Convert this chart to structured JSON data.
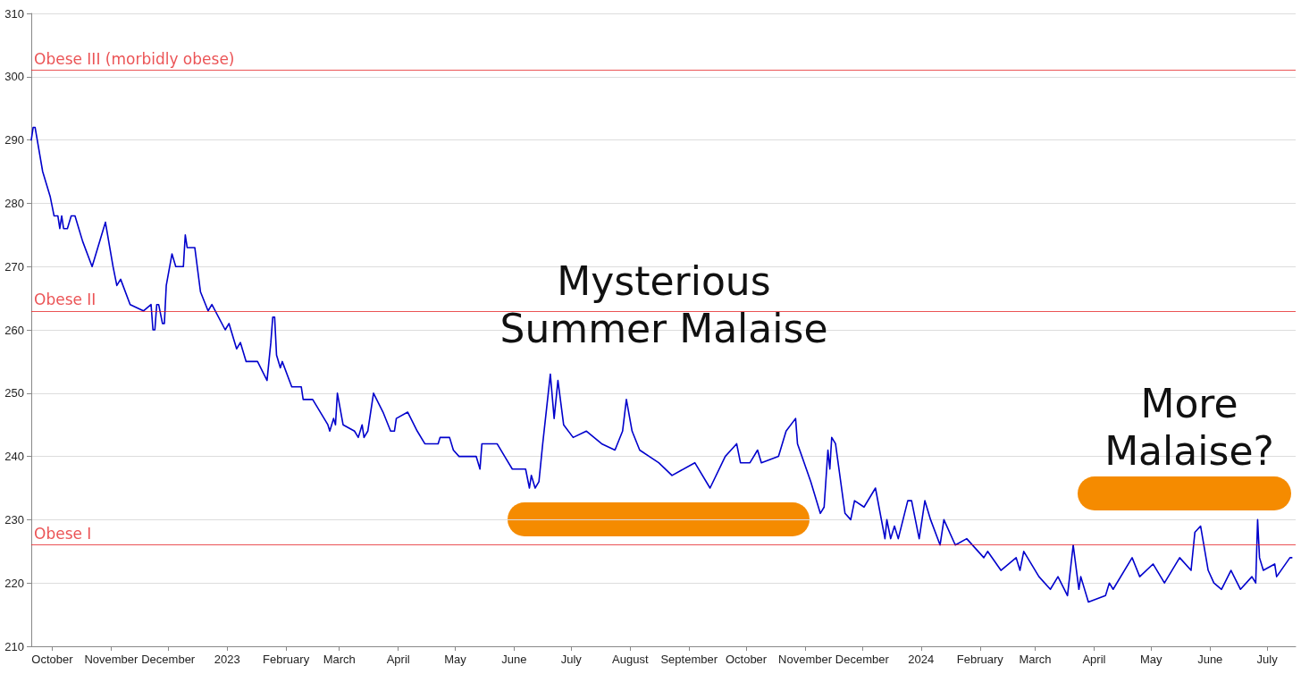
{
  "chart_data": {
    "type": "line",
    "x": [
      "2022-09-20",
      "2022-09-21",
      "2022-09-22",
      "2022-09-26",
      "2022-09-30",
      "2022-10-02",
      "2022-10-04",
      "2022-10-05",
      "2022-10-06",
      "2022-10-07",
      "2022-10-09",
      "2022-10-11",
      "2022-10-13",
      "2022-10-17",
      "2022-10-22",
      "2022-10-29",
      "2022-11-02",
      "2022-11-04",
      "2022-11-06",
      "2022-11-11",
      "2022-11-18",
      "2022-11-22",
      "2022-11-23",
      "2022-11-24",
      "2022-11-25",
      "2022-11-26",
      "2022-11-28",
      "2022-11-29",
      "2022-11-30",
      "2022-12-03",
      "2022-12-05",
      "2022-12-09",
      "2022-12-10",
      "2022-12-11",
      "2022-12-15",
      "2022-12-18",
      "2022-12-22",
      "2022-12-24",
      "2022-12-31",
      "2023-01-02",
      "2023-01-06",
      "2023-01-08",
      "2023-01-11",
      "2023-01-17",
      "2023-01-22",
      "2023-01-24",
      "2023-01-25",
      "2023-01-26",
      "2023-01-27",
      "2023-01-29",
      "2023-01-30",
      "2023-02-04",
      "2023-02-09",
      "2023-02-10",
      "2023-02-15",
      "2023-02-23",
      "2023-02-24",
      "2023-02-26",
      "2023-02-27",
      "2023-02-28",
      "2023-03-03",
      "2023-03-09",
      "2023-03-11",
      "2023-03-13",
      "2023-03-14",
      "2023-03-16",
      "2023-03-19",
      "2023-03-24",
      "2023-03-28",
      "2023-03-30",
      "2023-03-31",
      "2023-04-06",
      "2023-04-11",
      "2023-04-15",
      "2023-04-22",
      "2023-04-23",
      "2023-04-28",
      "2023-04-30",
      "2023-05-03",
      "2023-05-12",
      "2023-05-14",
      "2023-05-15",
      "2023-05-23",
      "2023-05-27",
      "2023-05-31",
      "2023-06-07",
      "2023-06-09",
      "2023-06-10",
      "2023-06-12",
      "2023-06-14",
      "2023-06-16",
      "2023-06-20",
      "2023-06-22",
      "2023-06-24",
      "2023-06-27",
      "2023-07-02",
      "2023-07-09",
      "2023-07-17",
      "2023-07-24",
      "2023-07-28",
      "2023-07-30",
      "2023-08-02",
      "2023-08-06",
      "2023-08-16",
      "2023-08-23",
      "2023-09-04",
      "2023-09-12",
      "2023-09-20",
      "2023-09-26",
      "2023-09-28",
      "2023-10-03",
      "2023-10-07",
      "2023-10-09",
      "2023-10-18",
      "2023-10-22",
      "2023-10-27",
      "2023-10-28",
      "2023-11-04",
      "2023-11-09",
      "2023-11-11",
      "2023-11-13",
      "2023-11-14",
      "2023-11-15",
      "2023-11-17",
      "2023-11-22",
      "2023-11-25",
      "2023-11-27",
      "2023-12-02",
      "2023-12-08",
      "2023-12-13",
      "2023-12-14",
      "2023-12-16",
      "2023-12-18",
      "2023-12-20",
      "2023-12-25",
      "2023-12-27",
      "2023-12-31",
      "2024-01-03",
      "2024-01-06",
      "2024-01-11",
      "2024-01-13",
      "2024-01-19",
      "2024-01-25",
      "2024-02-03",
      "2024-02-05",
      "2024-02-12",
      "2024-02-20",
      "2024-02-22",
      "2024-02-24",
      "2024-03-03",
      "2024-03-09",
      "2024-03-13",
      "2024-03-18",
      "2024-03-21",
      "2024-03-24",
      "2024-03-25",
      "2024-03-29",
      "2024-04-07",
      "2024-04-09",
      "2024-04-11",
      "2024-04-21",
      "2024-04-25",
      "2024-05-02",
      "2024-05-08",
      "2024-05-16",
      "2024-05-22",
      "2024-05-24",
      "2024-05-27",
      "2024-05-31",
      "2024-06-03",
      "2024-06-07",
      "2024-06-12",
      "2024-06-17",
      "2024-06-23",
      "2024-06-25",
      "2024-06-26",
      "2024-06-27",
      "2024-06-29",
      "2024-07-05",
      "2024-07-06",
      "2024-07-13",
      "2024-07-14"
    ],
    "series": [
      {
        "color": "#0000cc",
        "values": [
          290,
          292,
          292,
          285,
          281,
          278,
          278,
          276,
          278,
          276,
          276,
          278,
          278,
          274,
          270,
          277,
          270,
          267,
          268,
          264,
          263,
          264,
          260,
          260,
          264,
          264,
          261,
          261,
          267,
          272,
          270,
          270,
          275,
          273,
          273,
          266,
          263,
          264,
          260,
          261,
          257,
          258,
          255,
          255,
          252,
          258,
          262,
          262,
          256,
          254,
          255,
          251,
          251,
          249,
          249,
          245,
          244,
          246,
          245,
          250,
          245,
          244,
          243,
          245,
          243,
          244,
          250,
          247,
          244,
          244,
          246,
          247,
          244,
          242,
          242,
          243,
          243,
          241,
          240,
          240,
          238,
          242,
          242,
          240,
          238,
          238,
          235,
          237,
          235,
          236,
          242,
          253,
          246,
          252,
          245,
          243,
          244,
          242,
          241,
          244,
          249,
          244,
          241,
          239,
          237,
          239,
          235,
          240,
          242,
          239,
          239,
          241,
          239,
          240,
          244,
          246,
          242,
          236,
          231,
          232,
          241,
          238,
          243,
          242,
          231,
          230,
          233,
          232,
          235,
          227,
          230,
          227,
          229,
          227,
          233,
          233,
          227,
          233,
          230,
          226,
          230,
          226,
          227,
          224,
          225,
          222,
          224,
          222,
          225,
          221,
          219,
          221,
          218,
          226,
          219,
          221,
          217,
          218,
          220,
          219,
          224,
          221,
          223,
          220,
          224,
          222,
          228,
          229,
          222,
          220,
          219,
          222,
          219,
          221,
          220,
          230,
          224,
          222,
          223,
          221,
          224,
          224
        ]
      }
    ],
    "xlim": [
      "2022-09-20",
      "2024-07-16"
    ],
    "xticks": [
      {
        "value": "2022-10-01",
        "label": "October"
      },
      {
        "value": "2022-11-01",
        "label": "November"
      },
      {
        "value": "2022-12-01",
        "label": "December"
      },
      {
        "value": "2023-01-01",
        "label": "2023"
      },
      {
        "value": "2023-02-01",
        "label": "February"
      },
      {
        "value": "2023-03-01",
        "label": "March"
      },
      {
        "value": "2023-04-01",
        "label": "April"
      },
      {
        "value": "2023-05-01",
        "label": "May"
      },
      {
        "value": "2023-06-01",
        "label": "June"
      },
      {
        "value": "2023-07-01",
        "label": "July"
      },
      {
        "value": "2023-08-01",
        "label": "August"
      },
      {
        "value": "2023-09-01",
        "label": "September"
      },
      {
        "value": "2023-10-01",
        "label": "October"
      },
      {
        "value": "2023-11-01",
        "label": "November"
      },
      {
        "value": "2023-12-01",
        "label": "December"
      },
      {
        "value": "2024-01-01",
        "label": "2024"
      },
      {
        "value": "2024-02-01",
        "label": "February"
      },
      {
        "value": "2024-03-01",
        "label": "March"
      },
      {
        "value": "2024-04-01",
        "label": "April"
      },
      {
        "value": "2024-05-01",
        "label": "May"
      },
      {
        "value": "2024-06-01",
        "label": "June"
      },
      {
        "value": "2024-07-01",
        "label": "July"
      }
    ],
    "ylim": [
      210,
      310
    ],
    "yticks": [
      210,
      220,
      230,
      240,
      250,
      260,
      270,
      280,
      290,
      300,
      310
    ],
    "grid": "y",
    "marker": "none",
    "line_style": "solid",
    "ref_lines": [
      {
        "axis": "y",
        "value": 301,
        "label": "Obese III (morbidly obese)",
        "color": "#e41a1c"
      },
      {
        "axis": "y",
        "value": 263,
        "label": "Obese II",
        "color": "#e41a1c"
      },
      {
        "axis": "y",
        "value": 226,
        "label": "Obese I",
        "color": "#e41a1c"
      }
    ],
    "annotations": [
      "Mysterious Summer Malaise",
      "More Malaise?"
    ]
  }
}
